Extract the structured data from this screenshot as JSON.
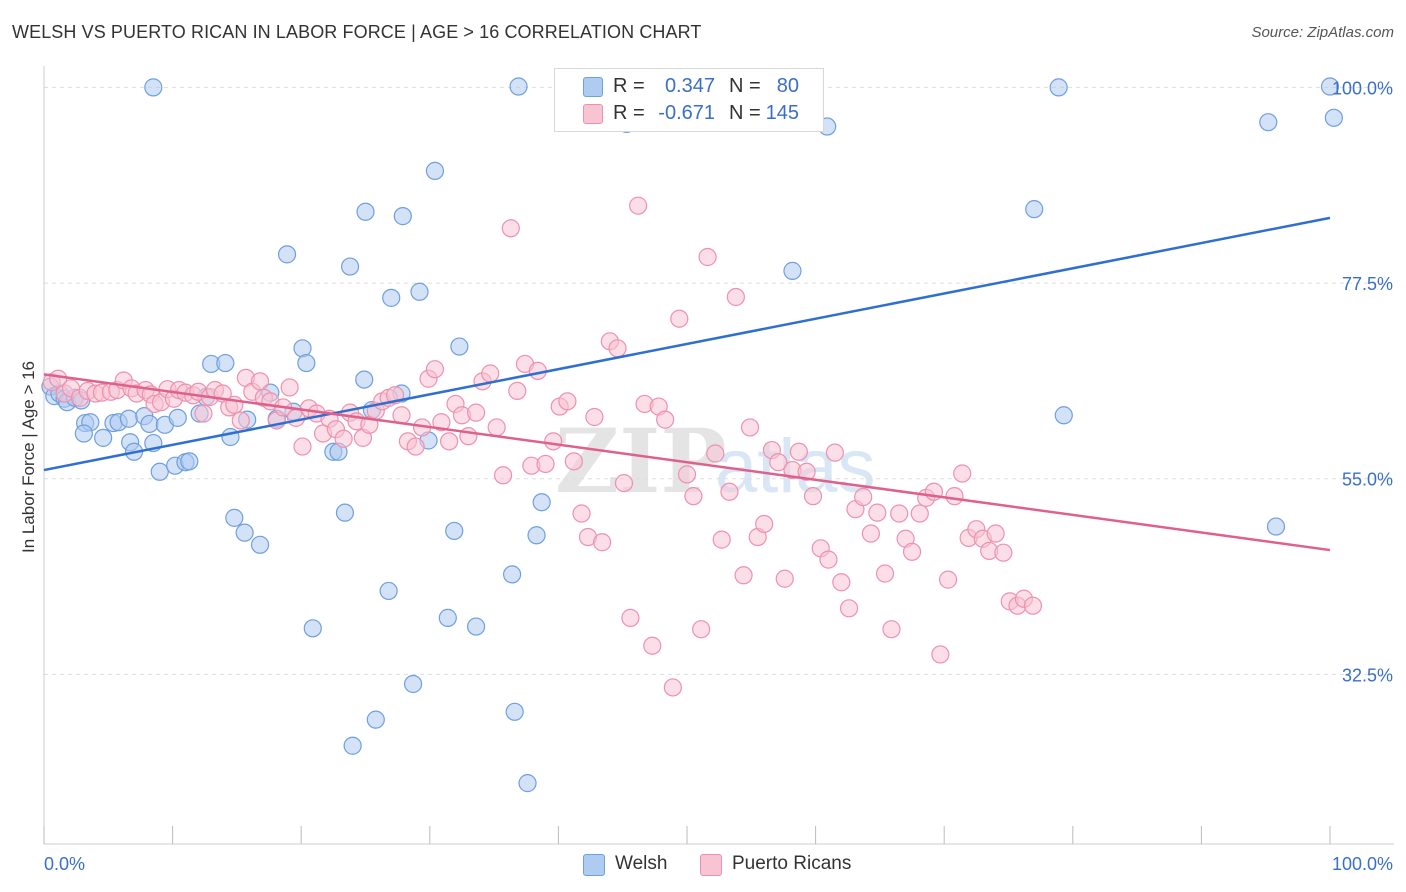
{
  "header": {
    "title": "WELSH VS PUERTO RICAN IN LABOR FORCE | AGE > 16 CORRELATION CHART",
    "source": "Source: ZipAtlas.com"
  },
  "legend_top": {
    "rows": [
      {
        "r_label": "R =",
        "r_value": "0.347",
        "n_label": "N =",
        "n_value": "80"
      },
      {
        "r_label": "R =",
        "r_value": "-0.671",
        "n_label": "N =",
        "n_value": "145"
      }
    ]
  },
  "legend_bottom": {
    "items": [
      "Welsh",
      "Puerto Ricans"
    ]
  },
  "watermark": {
    "zip": "ZIP",
    "atlas": "atlas"
  },
  "colors": {
    "welsh_fill": "#aecbf0",
    "welsh_stroke": "#6f9fe0",
    "welsh_line": "#2f6fd0",
    "pr_fill": "#f8c3d3",
    "pr_stroke": "#ee91ad",
    "pr_line": "#e0608c",
    "axis_text": "#3a6fc9",
    "grid": "#dddddd"
  },
  "chart_data": {
    "type": "scatter",
    "title": "WELSH VS PUERTO RICAN IN LABOR FORCE | AGE > 16 CORRELATION CHART",
    "xlabel": "",
    "ylabel": "In Labor Force | Age > 16",
    "xlim": [
      0,
      100
    ],
    "ylim": [
      13,
      102
    ],
    "x_tick_labels": [
      "0.0%",
      "100.0%"
    ],
    "y_ticks": [
      32.5,
      55.0,
      77.5,
      100.0
    ],
    "y_tick_labels": [
      "32.5%",
      "55.0%",
      "77.5%",
      "100.0%"
    ],
    "grid": true,
    "legend_position": "top-center",
    "series": [
      {
        "name": "Welsh",
        "R": 0.347,
        "N": 80,
        "trend": {
          "x0": 0,
          "y0": 56.0,
          "x1": 100,
          "y1": 85.0
        },
        "points": [
          [
            0.5,
            65.6
          ],
          [
            0.8,
            64.5
          ],
          [
            1.2,
            64.8
          ],
          [
            1.6,
            64.2
          ],
          [
            1.8,
            63.8
          ],
          [
            2.4,
            64.3
          ],
          [
            2.9,
            64.0
          ],
          [
            3.2,
            61.4
          ],
          [
            3.6,
            61.5
          ],
          [
            3.1,
            60.2
          ],
          [
            4.6,
            59.7
          ],
          [
            5.4,
            61.4
          ],
          [
            5.8,
            61.5
          ],
          [
            6.6,
            61.9
          ],
          [
            6.7,
            59.2
          ],
          [
            7.0,
            58.1
          ],
          [
            7.8,
            62.2
          ],
          [
            8.2,
            61.3
          ],
          [
            8.5,
            59.1
          ],
          [
            9.0,
            55.8
          ],
          [
            9.4,
            61.2
          ],
          [
            10.2,
            56.5
          ],
          [
            10.4,
            62.0
          ],
          [
            11.0,
            56.9
          ],
          [
            11.3,
            57.0
          ],
          [
            12.1,
            62.5
          ],
          [
            12.6,
            64.4
          ],
          [
            13.0,
            68.2
          ],
          [
            14.1,
            68.3
          ],
          [
            14.5,
            59.8
          ],
          [
            14.8,
            50.5
          ],
          [
            15.6,
            48.8
          ],
          [
            15.8,
            61.8
          ],
          [
            16.8,
            47.4
          ],
          [
            17.6,
            64.9
          ],
          [
            18.1,
            61.9
          ],
          [
            18.9,
            80.8
          ],
          [
            19.4,
            62.7
          ],
          [
            20.1,
            70.0
          ],
          [
            20.4,
            68.3
          ],
          [
            20.9,
            37.8
          ],
          [
            22.5,
            58.1
          ],
          [
            22.9,
            58.1
          ],
          [
            23.4,
            51.1
          ],
          [
            23.8,
            79.4
          ],
          [
            24.0,
            24.3
          ],
          [
            24.9,
            66.4
          ],
          [
            25.0,
            85.7
          ],
          [
            25.5,
            62.9
          ],
          [
            25.8,
            27.3
          ],
          [
            26.8,
            42.1
          ],
          [
            27.0,
            75.8
          ],
          [
            27.8,
            64.8
          ],
          [
            27.9,
            85.2
          ],
          [
            28.7,
            31.4
          ],
          [
            29.2,
            76.5
          ],
          [
            29.9,
            59.4
          ],
          [
            30.4,
            90.4
          ],
          [
            31.4,
            39.0
          ],
          [
            31.9,
            49.0
          ],
          [
            32.3,
            70.2
          ],
          [
            33.6,
            38.0
          ],
          [
            36.4,
            44.0
          ],
          [
            36.9,
            100.1
          ],
          [
            36.6,
            28.2
          ],
          [
            37.6,
            20.0
          ],
          [
            38.3,
            48.5
          ],
          [
            38.7,
            52.3
          ],
          [
            45.3,
            95.8
          ],
          [
            47.1,
            100.0
          ],
          [
            60.9,
            95.5
          ],
          [
            77.0,
            86.0
          ],
          [
            78.9,
            100.0
          ],
          [
            79.3,
            62.3
          ],
          [
            95.2,
            96.0
          ],
          [
            95.8,
            49.5
          ],
          [
            100.0,
            100.1
          ],
          [
            100.3,
            96.5
          ],
          [
            58.2,
            78.9
          ],
          [
            8.5,
            100.0
          ]
        ]
      },
      {
        "name": "Puerto Ricans",
        "R": -0.671,
        "N": 145,
        "trend": {
          "x0": 0,
          "y0": 67.0,
          "x1": 100,
          "y1": 46.8
        },
        "points": [
          [
            0.6,
            66.1
          ],
          [
            1.1,
            66.5
          ],
          [
            1.6,
            64.8
          ],
          [
            2.1,
            65.4
          ],
          [
            2.8,
            64.3
          ],
          [
            3.4,
            65.1
          ],
          [
            4.0,
            64.8
          ],
          [
            4.5,
            64.9
          ],
          [
            5.2,
            65.0
          ],
          [
            5.7,
            65.2
          ],
          [
            6.2,
            66.3
          ],
          [
            6.8,
            65.4
          ],
          [
            7.2,
            64.8
          ],
          [
            7.9,
            65.2
          ],
          [
            8.3,
            64.7
          ],
          [
            8.6,
            63.6
          ],
          [
            9.1,
            63.8
          ],
          [
            9.6,
            65.3
          ],
          [
            10.1,
            64.2
          ],
          [
            10.5,
            65.2
          ],
          [
            11.0,
            64.9
          ],
          [
            11.6,
            64.6
          ],
          [
            12.0,
            65.0
          ],
          [
            12.4,
            62.5
          ],
          [
            12.9,
            64.4
          ],
          [
            13.3,
            65.2
          ],
          [
            13.9,
            64.8
          ],
          [
            14.4,
            63.2
          ],
          [
            14.8,
            63.5
          ],
          [
            15.3,
            61.7
          ],
          [
            15.7,
            66.6
          ],
          [
            16.2,
            65.0
          ],
          [
            16.8,
            66.2
          ],
          [
            17.1,
            64.3
          ],
          [
            17.6,
            63.9
          ],
          [
            18.1,
            61.7
          ],
          [
            18.6,
            63.2
          ],
          [
            19.1,
            65.5
          ],
          [
            19.6,
            62.0
          ],
          [
            20.1,
            58.7
          ],
          [
            20.6,
            63.1
          ],
          [
            21.2,
            62.5
          ],
          [
            21.7,
            60.2
          ],
          [
            22.2,
            61.9
          ],
          [
            22.7,
            60.7
          ],
          [
            23.3,
            59.6
          ],
          [
            23.8,
            62.6
          ],
          [
            24.3,
            61.6
          ],
          [
            24.8,
            59.7
          ],
          [
            25.3,
            61.2
          ],
          [
            25.8,
            62.8
          ],
          [
            26.3,
            63.9
          ],
          [
            26.8,
            64.3
          ],
          [
            27.3,
            64.6
          ],
          [
            27.8,
            62.3
          ],
          [
            28.3,
            59.3
          ],
          [
            28.9,
            58.7
          ],
          [
            29.4,
            60.9
          ],
          [
            29.9,
            66.5
          ],
          [
            30.4,
            67.6
          ],
          [
            30.9,
            61.5
          ],
          [
            31.5,
            59.3
          ],
          [
            32.0,
            63.6
          ],
          [
            32.5,
            62.3
          ],
          [
            33.0,
            59.9
          ],
          [
            33.6,
            62.6
          ],
          [
            34.1,
            66.2
          ],
          [
            34.7,
            67.1
          ],
          [
            35.2,
            60.9
          ],
          [
            35.7,
            55.4
          ],
          [
            36.3,
            83.8
          ],
          [
            36.8,
            65.1
          ],
          [
            37.4,
            68.2
          ],
          [
            37.9,
            56.5
          ],
          [
            38.4,
            67.4
          ],
          [
            39.0,
            56.7
          ],
          [
            39.6,
            59.3
          ],
          [
            40.1,
            63.3
          ],
          [
            40.7,
            63.9
          ],
          [
            41.2,
            57.0
          ],
          [
            41.8,
            51.0
          ],
          [
            42.3,
            48.3
          ],
          [
            42.8,
            62.1
          ],
          [
            43.4,
            47.7
          ],
          [
            44.0,
            70.8
          ],
          [
            44.6,
            70.0
          ],
          [
            45.1,
            54.5
          ],
          [
            45.6,
            39.0
          ],
          [
            46.2,
            86.4
          ],
          [
            46.7,
            63.6
          ],
          [
            47.3,
            35.8
          ],
          [
            47.8,
            63.3
          ],
          [
            48.3,
            61.8
          ],
          [
            48.9,
            31.0
          ],
          [
            49.4,
            73.4
          ],
          [
            50.0,
            55.5
          ],
          [
            50.5,
            53.0
          ],
          [
            51.1,
            37.7
          ],
          [
            51.6,
            80.5
          ],
          [
            52.2,
            57.9
          ],
          [
            52.7,
            48.0
          ],
          [
            53.3,
            53.5
          ],
          [
            53.8,
            75.9
          ],
          [
            54.4,
            43.9
          ],
          [
            54.9,
            60.9
          ],
          [
            55.5,
            48.3
          ],
          [
            56.0,
            49.8
          ],
          [
            56.6,
            58.3
          ],
          [
            57.1,
            56.9
          ],
          [
            57.6,
            43.5
          ],
          [
            58.2,
            56.0
          ],
          [
            58.7,
            58.1
          ],
          [
            59.3,
            55.8
          ],
          [
            59.8,
            53.0
          ],
          [
            60.4,
            47.0
          ],
          [
            61.0,
            45.7
          ],
          [
            61.5,
            58.0
          ],
          [
            62.0,
            43.1
          ],
          [
            62.6,
            40.1
          ],
          [
            63.1,
            51.5
          ],
          [
            63.7,
            52.9
          ],
          [
            64.3,
            48.7
          ],
          [
            64.8,
            51.1
          ],
          [
            65.4,
            44.1
          ],
          [
            65.9,
            37.7
          ],
          [
            66.5,
            51.0
          ],
          [
            67.0,
            48.1
          ],
          [
            67.5,
            46.6
          ],
          [
            68.1,
            51.0
          ],
          [
            68.6,
            52.8
          ],
          [
            69.2,
            53.5
          ],
          [
            69.7,
            34.8
          ],
          [
            70.3,
            43.4
          ],
          [
            70.8,
            53.0
          ],
          [
            71.4,
            55.6
          ],
          [
            71.9,
            48.2
          ],
          [
            72.5,
            49.2
          ],
          [
            73.0,
            48.1
          ],
          [
            73.5,
            46.7
          ],
          [
            74.0,
            48.7
          ],
          [
            74.6,
            46.5
          ],
          [
            75.1,
            40.9
          ],
          [
            75.7,
            40.4
          ],
          [
            76.2,
            41.2
          ],
          [
            76.9,
            40.4
          ]
        ]
      }
    ]
  }
}
